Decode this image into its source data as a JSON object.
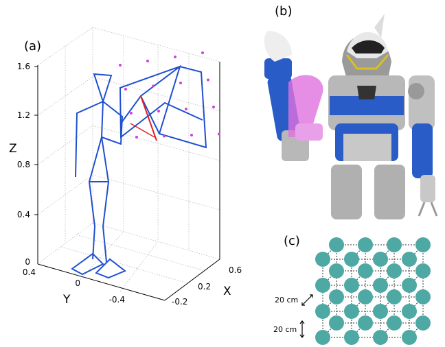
{
  "panel_a": {
    "label": "(a)",
    "z_axis": {
      "label": "Z",
      "ticks": [
        "0",
        "0.4",
        "0.8",
        "1.2",
        "1.6"
      ]
    },
    "y_axis": {
      "label": "Y",
      "ticks": [
        "0.4",
        "0",
        "-0.4"
      ]
    },
    "x_axis": {
      "label": "X",
      "ticks": [
        "-0.2",
        "0.2",
        "0.6"
      ]
    }
  },
  "panel_b": {
    "label": "(b)"
  },
  "panel_c": {
    "label": "(c)",
    "diagonal_spacing": "20 cm",
    "vertical_spacing": "20 cm"
  }
}
